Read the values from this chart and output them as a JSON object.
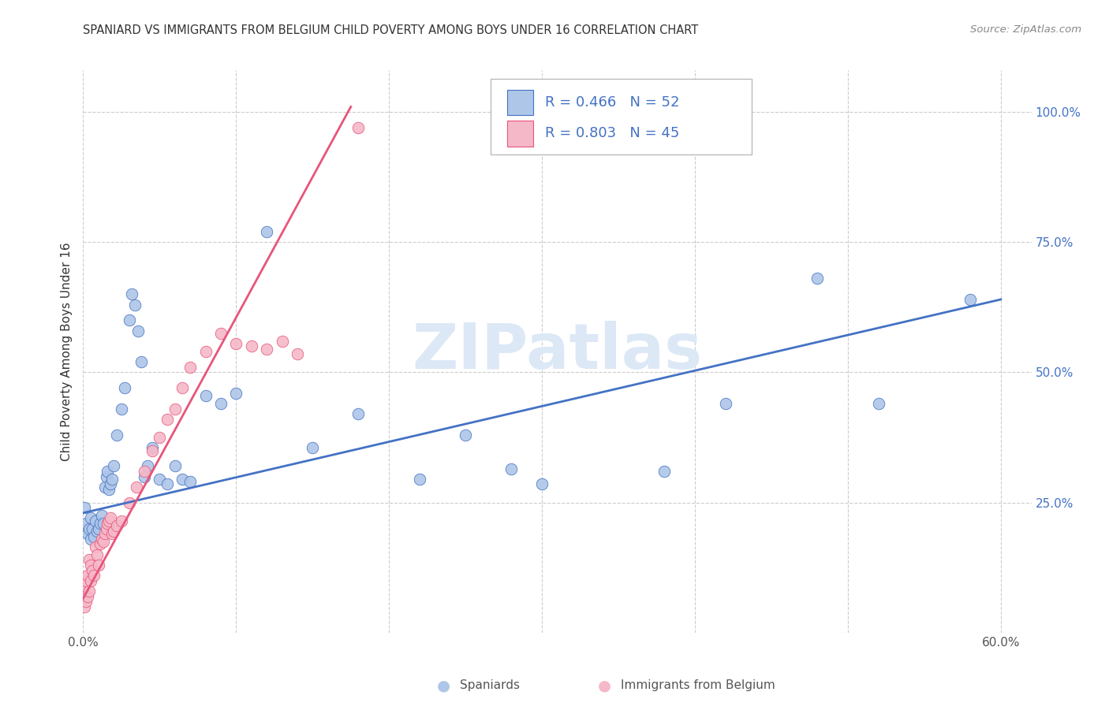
{
  "title": "SPANIARD VS IMMIGRANTS FROM BELGIUM CHILD POVERTY AMONG BOYS UNDER 16 CORRELATION CHART",
  "source": "Source: ZipAtlas.com",
  "ylabel": "Child Poverty Among Boys Under 16",
  "x_min": 0.0,
  "x_max": 0.62,
  "y_min": 0.0,
  "y_max": 1.08,
  "color_blue": "#aec6e8",
  "color_pink": "#f5b8c8",
  "line_color_blue": "#4472c4",
  "line_color_pink": "#e8557a",
  "watermark_color": "#dce8f5",
  "spaniards_x": [
    0.001,
    0.002,
    0.003,
    0.004,
    0.005,
    0.005,
    0.006,
    0.007,
    0.008,
    0.009,
    0.01,
    0.011,
    0.012,
    0.013,
    0.014,
    0.015,
    0.016,
    0.017,
    0.018,
    0.019,
    0.02,
    0.022,
    0.025,
    0.027,
    0.03,
    0.032,
    0.034,
    0.036,
    0.038,
    0.04,
    0.042,
    0.045,
    0.05,
    0.055,
    0.06,
    0.065,
    0.07,
    0.08,
    0.09,
    0.1,
    0.12,
    0.15,
    0.18,
    0.22,
    0.25,
    0.28,
    0.3,
    0.38,
    0.42,
    0.48,
    0.52,
    0.58
  ],
  "spaniards_y": [
    0.24,
    0.21,
    0.19,
    0.2,
    0.18,
    0.22,
    0.2,
    0.185,
    0.215,
    0.195,
    0.2,
    0.21,
    0.225,
    0.21,
    0.28,
    0.3,
    0.31,
    0.275,
    0.285,
    0.295,
    0.32,
    0.38,
    0.43,
    0.47,
    0.6,
    0.65,
    0.63,
    0.58,
    0.52,
    0.3,
    0.32,
    0.355,
    0.295,
    0.285,
    0.32,
    0.295,
    0.29,
    0.455,
    0.44,
    0.46,
    0.77,
    0.355,
    0.42,
    0.295,
    0.38,
    0.315,
    0.285,
    0.31,
    0.44,
    0.68,
    0.44,
    0.64
  ],
  "belgium_x": [
    0.0,
    0.001,
    0.001,
    0.002,
    0.002,
    0.003,
    0.003,
    0.004,
    0.004,
    0.005,
    0.005,
    0.006,
    0.007,
    0.008,
    0.009,
    0.01,
    0.011,
    0.012,
    0.013,
    0.014,
    0.015,
    0.016,
    0.017,
    0.018,
    0.019,
    0.02,
    0.022,
    0.025,
    0.03,
    0.035,
    0.04,
    0.045,
    0.05,
    0.055,
    0.06,
    0.065,
    0.07,
    0.08,
    0.09,
    0.1,
    0.11,
    0.12,
    0.13,
    0.14,
    0.18
  ],
  "belgium_y": [
    0.08,
    0.05,
    0.09,
    0.06,
    0.1,
    0.07,
    0.11,
    0.08,
    0.14,
    0.1,
    0.13,
    0.12,
    0.11,
    0.165,
    0.15,
    0.13,
    0.17,
    0.18,
    0.175,
    0.19,
    0.2,
    0.21,
    0.215,
    0.22,
    0.19,
    0.195,
    0.205,
    0.215,
    0.25,
    0.28,
    0.31,
    0.35,
    0.375,
    0.41,
    0.43,
    0.47,
    0.51,
    0.54,
    0.575,
    0.555,
    0.55,
    0.545,
    0.56,
    0.535,
    0.97
  ],
  "blue_line_x": [
    0.0,
    0.6
  ],
  "blue_line_y": [
    0.23,
    0.64
  ],
  "pink_line_x": [
    -0.002,
    0.175
  ],
  "pink_line_y": [
    0.055,
    1.01
  ]
}
